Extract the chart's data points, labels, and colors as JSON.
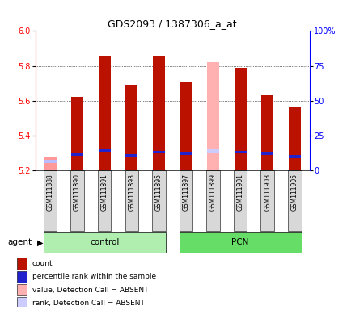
{
  "title": "GDS2093 / 1387306_a_at",
  "samples": [
    "GSM111888",
    "GSM111890",
    "GSM111891",
    "GSM111893",
    "GSM111895",
    "GSM111897",
    "GSM111899",
    "GSM111901",
    "GSM111903",
    "GSM111905"
  ],
  "groups": [
    "control",
    "control",
    "control",
    "control",
    "control",
    "PCN",
    "PCN",
    "PCN",
    "PCN",
    "PCN"
  ],
  "bar_values": [
    5.28,
    5.62,
    5.86,
    5.69,
    5.86,
    5.71,
    5.82,
    5.79,
    5.63,
    5.56
  ],
  "bar_colors": [
    "#FF9999",
    "#BB1100",
    "#BB1100",
    "#BB1100",
    "#BB1100",
    "#BB1100",
    "#FFB0B0",
    "#BB1100",
    "#BB1100",
    "#BB1100"
  ],
  "rank_values": [
    5.25,
    5.295,
    5.315,
    5.285,
    5.305,
    5.3,
    5.31,
    5.305,
    5.3,
    5.28
  ],
  "rank_colors": [
    "#BBBBFF",
    "#2222CC",
    "#2222CC",
    "#2222CC",
    "#2222CC",
    "#2222CC",
    "#CCCCFF",
    "#2222CC",
    "#2222CC",
    "#2222CC"
  ],
  "ylim_left": [
    5.2,
    6.0
  ],
  "ylim_right": [
    0,
    100
  ],
  "yticks_left": [
    5.2,
    5.4,
    5.6,
    5.8,
    6.0
  ],
  "yticks_right": [
    0,
    25,
    50,
    75,
    100
  ],
  "ytick_labels_right": [
    "0",
    "25",
    "50",
    "75",
    "100%"
  ],
  "bar_width": 0.45,
  "ctrl_color": "#B0EEB0",
  "pcn_color": "#66DD66",
  "legend_items": [
    {
      "label": "count",
      "color": "#BB1100"
    },
    {
      "label": "percentile rank within the sample",
      "color": "#2222CC"
    },
    {
      "label": "value, Detection Call = ABSENT",
      "color": "#FFB0B0"
    },
    {
      "label": "rank, Detection Call = ABSENT",
      "color": "#CCCCFF"
    }
  ]
}
